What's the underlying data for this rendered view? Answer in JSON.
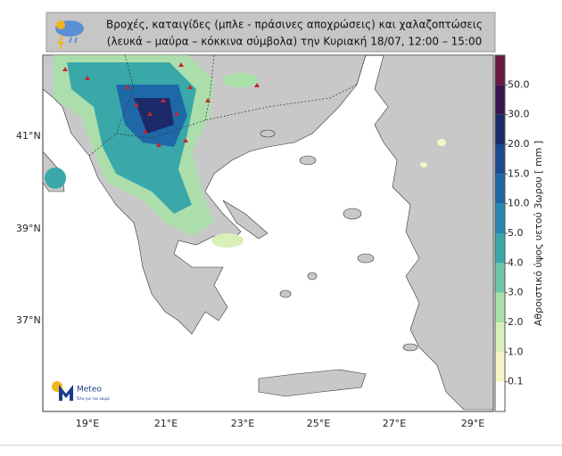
{
  "title": [
    "Βροχές, καταιγίδες (μπλε - πράσινες αποχρώσεις) και χαλαζοπτώσεις",
    "(λευκά – μαύρα – κόκκινα σύμβολα) την Κυριακή 18/07, 12:00 – 15:00"
  ],
  "lat_labels": [
    "41°N",
    "39°N",
    "37°N"
  ],
  "lon_labels": [
    "19°E",
    "21°E",
    "23°E",
    "25°E",
    "27°E",
    "29°E"
  ],
  "colorbar": {
    "label": "Αθροιστικό ύψος υετού 3ωρου [ mm ]",
    "ticks": [
      {
        "value": 0.1,
        "label": "0.1"
      },
      {
        "value": 1,
        "label": "1.0"
      },
      {
        "value": 2,
        "label": "2.0"
      },
      {
        "value": 3,
        "label": "3.0"
      },
      {
        "value": 4,
        "label": "4.0"
      },
      {
        "value": 5,
        "label": "5.0"
      },
      {
        "value": 10,
        "label": "10.0"
      },
      {
        "value": 15,
        "label": "15.0"
      },
      {
        "value": 20,
        "label": "20.0"
      },
      {
        "value": 30,
        "label": "30.0"
      },
      {
        "value": 50,
        "label": "50.0"
      }
    ],
    "colors": [
      "#ffffff",
      "#f6f6c4",
      "#d9f0b8",
      "#a8e0a8",
      "#6cc8a8",
      "#3aa8a8",
      "#2a88b0",
      "#1f68a8",
      "#1a4a90",
      "#1c2a6a",
      "#3a1450",
      "#6a1a40"
    ]
  },
  "logo": {
    "name": "Meteo",
    "tagline": "Όλα για τον καιρό"
  }
}
